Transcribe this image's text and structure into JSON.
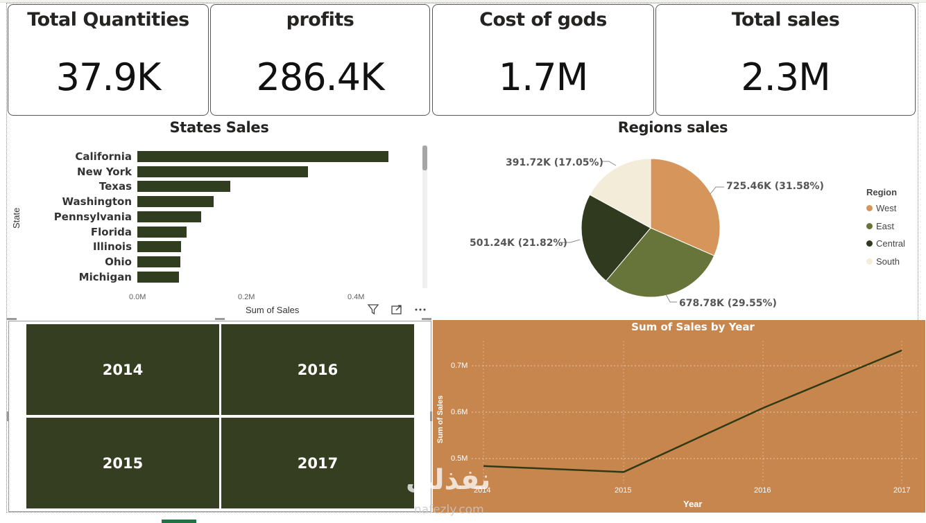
{
  "cards": [
    {
      "title": "Total Quantities",
      "value": "37.9K"
    },
    {
      "title": "profits",
      "value": "286.4K"
    },
    {
      "title": "Cost of gods",
      "value": "1.7M"
    },
    {
      "title": "Total sales",
      "value": "2.3M"
    }
  ],
  "states_chart": {
    "title": "States Sales",
    "ylabel": "State",
    "xlabel": "Sum of Sales",
    "ticks": [
      "0.0M",
      "0.2M",
      "0.4M"
    ],
    "header_icons": [
      "filter-icon",
      "focus-mode-icon",
      "more-options-icon"
    ]
  },
  "regions_chart": {
    "title": "Regions sales",
    "legend_title": "Region",
    "labels": [
      "725.46K (31.58%)",
      "678.78K (29.55%)",
      "501.24K (21.82%)",
      "391.72K (17.05%)"
    ]
  },
  "matrix": {
    "tiles": [
      "2014",
      "2016",
      "2015",
      "2017"
    ],
    "color": "#353e21"
  },
  "line_chart": {
    "title": "Sum of Sales by Year",
    "ylabel": "Sum of Sales",
    "xlabel": "Year",
    "yticks": [
      "0.7M",
      "0.6M",
      "0.5M"
    ],
    "xticks": [
      "2014",
      "2015",
      "2016",
      "2017"
    ],
    "background": "#c8864f",
    "line_color": "#2f3a14"
  },
  "watermark": {
    "text": "نفذلي",
    "sub": "nafezly.com"
  },
  "chart_data": [
    {
      "type": "bar",
      "title": "States Sales",
      "categories": [
        "California",
        "New York",
        "Texas",
        "Washington",
        "Pennsylvania",
        "Florida",
        "Illinois",
        "Ohio",
        "Michigan"
      ],
      "values": [
        457688,
        310876,
        170188,
        138641,
        116512,
        89474,
        80166,
        78258,
        76270
      ],
      "xlabel": "Sum of Sales",
      "ylabel": "State",
      "xlim": [
        0,
        0.5
      ],
      "unit": "M",
      "color": "#313d1f"
    },
    {
      "type": "pie",
      "title": "Regions sales",
      "categories": [
        "West",
        "East",
        "Central",
        "South"
      ],
      "values": [
        725.46,
        678.78,
        501.24,
        391.72
      ],
      "colors": [
        "#d6955b",
        "#67753b",
        "#2f3a1e",
        "#f3ecd9"
      ],
      "legend": "right"
    },
    {
      "type": "line",
      "title": "Sum of Sales by Year",
      "x": [
        "2014",
        "2015",
        "2016",
        "2017"
      ],
      "values": [
        0.484,
        0.471,
        0.609,
        0.733
      ],
      "xlabel": "Year",
      "ylabel": "Sum of Sales",
      "ylim": [
        0.45,
        0.75
      ],
      "grid": true
    }
  ]
}
